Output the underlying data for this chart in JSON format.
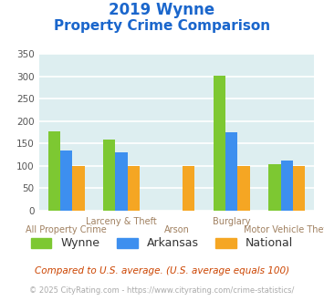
{
  "title_line1": "2019 Wynne",
  "title_line2": "Property Crime Comparison",
  "categories": [
    "All Property Crime",
    "Larceny & Theft",
    "Arson",
    "Burglary",
    "Motor Vehicle Theft"
  ],
  "series": {
    "Wynne": [
      178,
      160,
      0,
      302,
      105
    ],
    "Arkansas": [
      135,
      130,
      0,
      175,
      112
    ],
    "National": [
      100,
      100,
      100,
      100,
      100
    ]
  },
  "colors": {
    "Wynne": "#7dc832",
    "Arkansas": "#3d8fef",
    "National": "#f5a623"
  },
  "ylim": [
    0,
    350
  ],
  "yticks": [
    0,
    50,
    100,
    150,
    200,
    250,
    300,
    350
  ],
  "bg_color": "#ddeef0",
  "grid_color": "#ffffff",
  "title_color": "#1a66cc",
  "xlabel_color": "#a08060",
  "legend_fontsize": 9,
  "footnote1": "Compared to U.S. average. (U.S. average equals 100)",
  "footnote2": "© 2025 CityRating.com - https://www.cityrating.com/crime-statistics/",
  "footnote1_color": "#cc4400",
  "footnote2_color": "#aaaaaa"
}
